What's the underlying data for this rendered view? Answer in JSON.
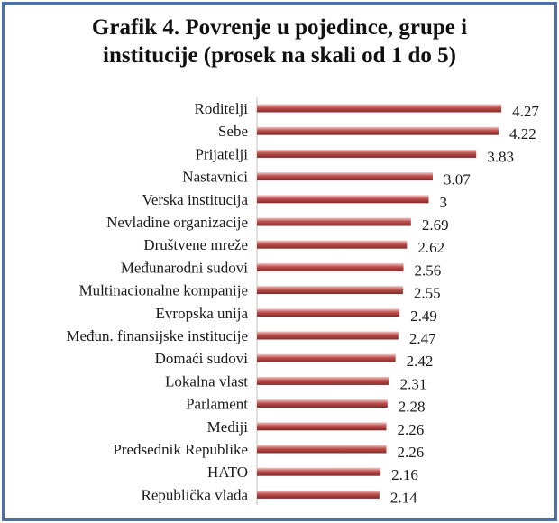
{
  "chart_data": {
    "type": "bar",
    "orientation": "horizontal",
    "title_line1": "Grafik 4. Povrenje u pojedince, grupe i",
    "title_line2": "institucije (prosek na skali od 1 do 5)",
    "categories": [
      "Roditelji",
      "Sebe",
      "Prijatelji",
      "Nastavnici",
      "Verska institucija",
      "Nevladine organizacije",
      "Društvene mreže",
      "Međunarodni sudovi",
      "Multinacionalne kompanije",
      "Evropska unija",
      "Međun. finansijske institucije",
      "Domaći sudovi",
      "Lokalna vlast",
      "Parlament",
      "Mediji",
      "Predsednik Republike",
      "HATO",
      "Republička vlada"
    ],
    "values": [
      4.27,
      4.22,
      3.83,
      3.07,
      3,
      2.69,
      2.62,
      2.56,
      2.55,
      2.49,
      2.47,
      2.42,
      2.31,
      2.28,
      2.26,
      2.26,
      2.16,
      2.14
    ],
    "value_labels": [
      "4.27",
      "4.22",
      "3.83",
      "3.07",
      "3",
      "2.69",
      "2.62",
      "2.56",
      "2.55",
      "2.49",
      "2.47",
      "2.42",
      "2.31",
      "2.28",
      "2.26",
      "2.26",
      "2.16",
      "2.14"
    ],
    "bar_color": "#c0504d",
    "grid": false,
    "legend": "none"
  }
}
